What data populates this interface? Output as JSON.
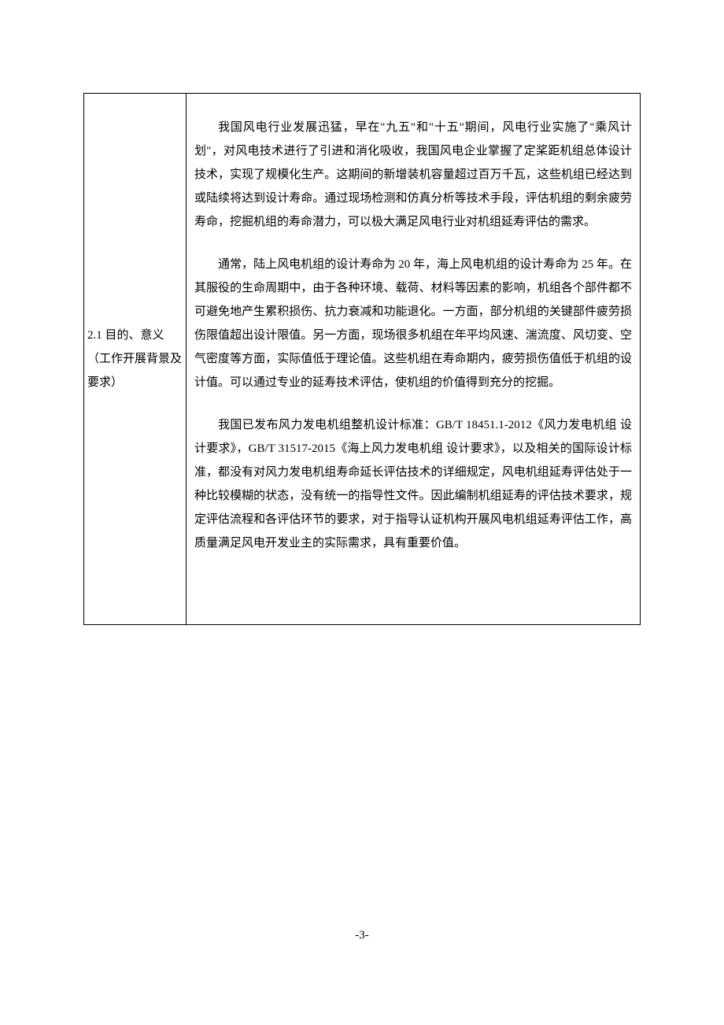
{
  "table": {
    "label": {
      "line1": "2.1 目的、意义",
      "line2": "（工作开展背景及要求）"
    },
    "content": {
      "p1": "我国风电行业发展迅猛，早在\"九五\"和\"十五\"期间，风电行业实施了\"乘风计划\"，对风电技术进行了引进和消化吸收，我国风电企业掌握了定桨距机组总体设计技术，实现了规模化生产。这期间的新增装机容量超过百万千瓦，这些机组已经达到或陆续将达到设计寿命。通过现场检测和仿真分析等技术手段，评估机组的剩余疲劳寿命，挖掘机组的寿命潜力，可以极大满足风电行业对机组延寿评估的需求。",
      "p2": "通常，陆上风电机组的设计寿命为 20 年，海上风电机组的设计寿命为 25 年。在其服役的生命周期中，由于各种环境、载荷、材料等因素的影响，机组各个部件都不可避免地产生累积损伤、抗力衰减和功能退化。一方面，部分机组的关键部件疲劳损伤限值超出设计限值。另一方面，现场很多机组在年平均风速、湍流度、风切变、空气密度等方面，实际值低于理论值。这些机组在寿命期内，疲劳损伤值低于机组的设计值。可以通过专业的延寿技术评估，使机组的价值得到充分的挖掘。",
      "p3": "我国已发布风力发电机组整机设计标准：GB/T 18451.1-2012《风力发电机组 设计要求》，GB/T 31517-2015《海上风力发电机组 设计要求》，以及相关的国际设计标准，都没有对风力发电机组寿命延长评估技术的详细规定，风电机组延寿评估处于一种比较模糊的状态，没有统一的指导性文件。因此编制机组延寿的评估技术要求，规定评估流程和各评估环节的要求，对于指导认证机构开展风电机组延寿评估工作，高质量满足风电开发业主的实际需求，具有重要价值。"
    }
  },
  "page_number": "-3-",
  "colors": {
    "text": "#000000",
    "background": "#ffffff",
    "border": "#000000"
  },
  "typography": {
    "body_fontsize": 15,
    "body_family": "SimSun",
    "line_height": 2.0
  }
}
